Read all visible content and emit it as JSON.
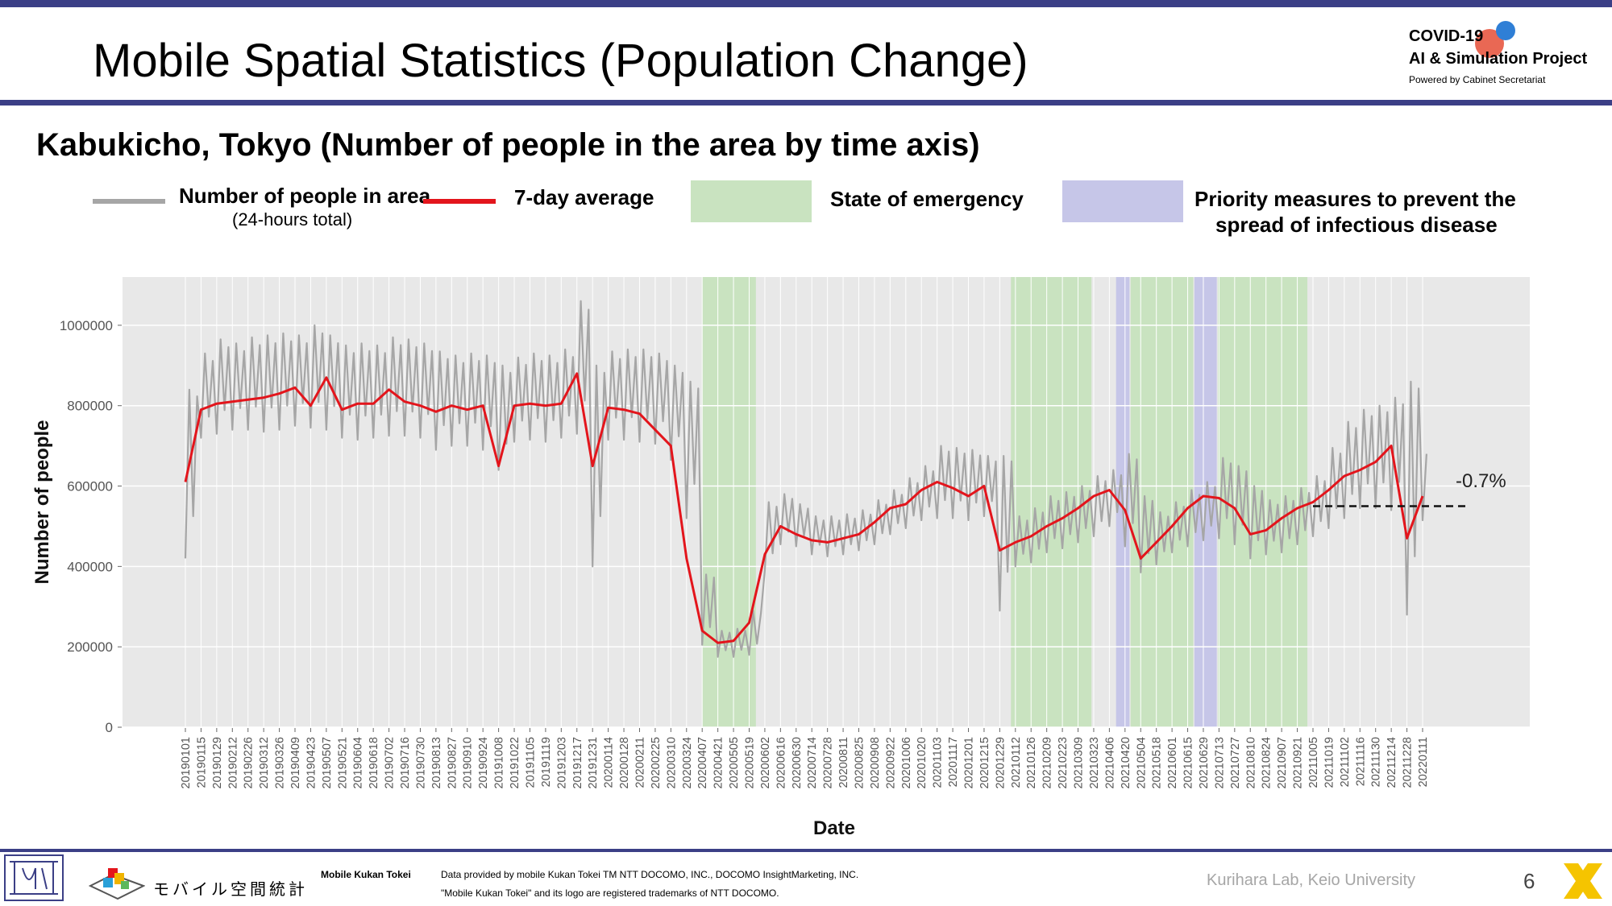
{
  "slide": {
    "title": "Mobile Spatial Statistics (Population Change)",
    "subtitle": "Kabukicho, Tokyo (Number of people in the area by time axis)",
    "page_number": "6"
  },
  "logo": {
    "line1": "COVID-19",
    "line2": "AI & Simulation Project",
    "line3": "Powered by Cabinet Secretariat"
  },
  "legend": {
    "people_line1": "Number of people in area",
    "people_line2": "(24-hours total)",
    "avg": "7-day average",
    "emergency": "State of emergency",
    "priority_line1": "Priority measures to prevent the",
    "priority_line2": "spread of infectious disease"
  },
  "colors": {
    "raw": "#a6a6a6",
    "avg": "#e3151c",
    "emergency": "#c9e3c0",
    "priority": "#c6c6e8",
    "panel": "#e8e8e8",
    "bars": "#3b3f86"
  },
  "footer": {
    "brand_jp": "モバイル空間統計",
    "mobile_kukan": "Mobile Kukan Tokei",
    "credit_line1": "Data provided by mobile Kukan Tokei TM NTT DOCOMO, INC., DOCOMO InsightMarketing, INC.",
    "credit_line2": "\"Mobile Kukan Tokei\" and its logo are registered trademarks of NTT DOCOMO.",
    "lab": "Kurihara Lab, Keio University"
  },
  "chart_data": {
    "type": "line",
    "xlabel": "Date",
    "ylabel": "Number of people",
    "ylim": [
      0,
      1120000
    ],
    "yticks": [
      0,
      200000,
      400000,
      600000,
      800000,
      1000000
    ],
    "grid": true,
    "legend_position": "top",
    "x_tick_labels": [
      "20190101",
      "20190115",
      "20190129",
      "20190212",
      "20190226",
      "20190312",
      "20190326",
      "20190409",
      "20190423",
      "20190507",
      "20190521",
      "20190604",
      "20190618",
      "20190702",
      "20190716",
      "20190730",
      "20190813",
      "20190827",
      "20190910",
      "20190924",
      "20191008",
      "20191022",
      "20191105",
      "20191119",
      "20191203",
      "20191217",
      "20191231",
      "20200114",
      "20200128",
      "20200211",
      "20200225",
      "20200310",
      "20200324",
      "20200407",
      "20200421",
      "20200505",
      "20200519",
      "20200602",
      "20200616",
      "20200630",
      "20200714",
      "20200728",
      "20200811",
      "20200825",
      "20200908",
      "20200922",
      "20201006",
      "20201020",
      "20201103",
      "20201117",
      "20201201",
      "20201215",
      "20201229",
      "20210112",
      "20210126",
      "20210209",
      "20210223",
      "20210309",
      "20210323",
      "20210406",
      "20210420",
      "20210504",
      "20210518",
      "20210601",
      "20210615",
      "20210629",
      "20210713",
      "20210727",
      "20210810",
      "20210824",
      "20210907",
      "20210921",
      "20211005",
      "20211019",
      "20211102",
      "20211116",
      "20211130",
      "20211214",
      "20211228",
      "20220111"
    ],
    "series": [
      {
        "name": "Number of people in area",
        "weekly_min": [
          420000,
          720000,
          730000,
          740000,
          740000,
          735000,
          740000,
          750000,
          745000,
          740000,
          720000,
          715000,
          720000,
          725000,
          725000,
          720000,
          690000,
          700000,
          700000,
          690000,
          640000,
          710000,
          715000,
          710000,
          720000,
          730000,
          400000,
          715000,
          715000,
          710000,
          705000,
          665000,
          520000,
          205000,
          175000,
          175000,
          180000,
          390000,
          455000,
          450000,
          430000,
          425000,
          430000,
          440000,
          455000,
          480000,
          495000,
          515000,
          520000,
          520000,
          515000,
          525000,
          290000,
          400000,
          410000,
          435000,
          445000,
          460000,
          475000,
          500000,
          450000,
          385000,
          405000,
          435000,
          450000,
          465000,
          470000,
          455000,
          420000,
          430000,
          435000,
          455000,
          475000,
          495000,
          520000,
          545000,
          545000,
          540000,
          280000,
          515000
        ],
        "weekly_max": [
          840000,
          930000,
          965000,
          955000,
          970000,
          975000,
          980000,
          975000,
          1000000,
          975000,
          950000,
          955000,
          950000,
          970000,
          965000,
          955000,
          935000,
          925000,
          930000,
          925000,
          900000,
          920000,
          930000,
          925000,
          940000,
          1060000,
          900000,
          935000,
          940000,
          940000,
          930000,
          900000,
          860000,
          380000,
          240000,
          245000,
          290000,
          560000,
          580000,
          555000,
          525000,
          525000,
          530000,
          540000,
          565000,
          590000,
          620000,
          650000,
          700000,
          695000,
          690000,
          675000,
          675000,
          525000,
          545000,
          575000,
          585000,
          600000,
          625000,
          640000,
          680000,
          575000,
          535000,
          560000,
          590000,
          610000,
          670000,
          650000,
          600000,
          565000,
          575000,
          595000,
          625000,
          695000,
          760000,
          790000,
          800000,
          820000,
          860000,
          680000
        ]
      },
      {
        "name": "7-day average",
        "values": [
          610000,
          790000,
          805000,
          810000,
          815000,
          820000,
          830000,
          845000,
          800000,
          870000,
          790000,
          805000,
          805000,
          840000,
          810000,
          800000,
          785000,
          800000,
          790000,
          800000,
          650000,
          800000,
          805000,
          800000,
          805000,
          880000,
          650000,
          795000,
          790000,
          780000,
          740000,
          700000,
          420000,
          240000,
          210000,
          215000,
          260000,
          430000,
          500000,
          480000,
          465000,
          460000,
          470000,
          480000,
          510000,
          545000,
          555000,
          590000,
          610000,
          595000,
          575000,
          600000,
          440000,
          460000,
          475000,
          500000,
          520000,
          545000,
          575000,
          590000,
          540000,
          420000,
          460000,
          500000,
          545000,
          575000,
          570000,
          545000,
          480000,
          490000,
          520000,
          545000,
          560000,
          590000,
          625000,
          640000,
          660000,
          700000,
          470000,
          575000
        ],
        "annotation": "-0.7%",
        "reference_level": 550000,
        "reference_start": "20211005"
      }
    ],
    "shaded_periods": [
      {
        "type": "State of emergency",
        "start": "20200407",
        "end": "20200525"
      },
      {
        "type": "State of emergency",
        "start": "20210108",
        "end": "20210321"
      },
      {
        "type": "Priority measures to prevent the spread of infectious disease",
        "start": "20210412",
        "end": "20210424"
      },
      {
        "type": "State of emergency",
        "start": "20210425",
        "end": "20210620"
      },
      {
        "type": "Priority measures to prevent the spread of infectious disease",
        "start": "20210621",
        "end": "20210711"
      },
      {
        "type": "State of emergency",
        "start": "20210712",
        "end": "20210930"
      }
    ]
  }
}
